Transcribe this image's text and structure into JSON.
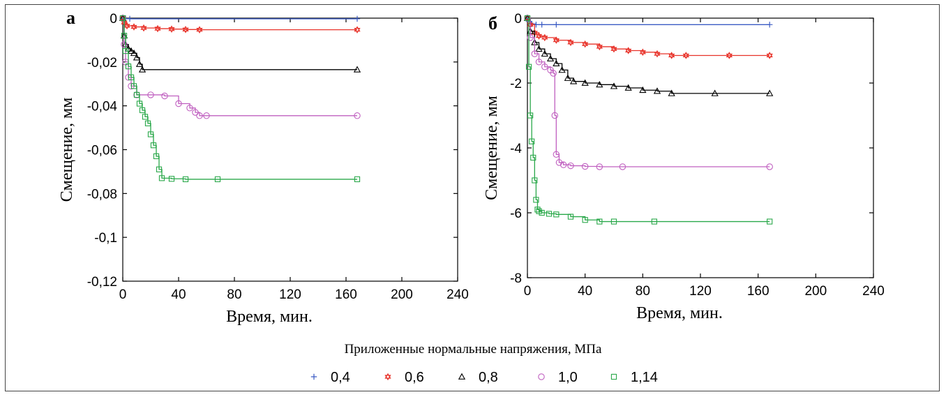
{
  "legend": {
    "title": "Приложенные нормальные напряжения, МПа",
    "items": [
      {
        "label": "0,4",
        "color": "#3b5bc4",
        "marker": "plus"
      },
      {
        "label": "0,6",
        "color": "#e8332a",
        "marker": "star"
      },
      {
        "label": "0,8",
        "color": "#000000",
        "marker": "triangle"
      },
      {
        "label": "1,0",
        "color": "#c060c0",
        "marker": "circle"
      },
      {
        "label": "1,14",
        "color": "#2aa84a",
        "marker": "square"
      }
    ]
  },
  "chart_data": [
    {
      "type": "line",
      "panel_label": "а",
      "xlabel": "Время, мин.",
      "ylabel": "Смещение, мм",
      "xlim": [
        0,
        240
      ],
      "ylim": [
        -0.12,
        0
      ],
      "xticks": [
        0,
        40,
        80,
        120,
        160,
        200,
        240
      ],
      "xtick_labels": [
        "0",
        "40",
        "80",
        "120",
        "160",
        "200",
        "240"
      ],
      "yticks": [
        0,
        -0.02,
        -0.04,
        -0.06,
        -0.08,
        -0.1,
        -0.12
      ],
      "ytick_labels": [
        "0",
        "-0,02",
        "-0,04",
        "-0,06",
        "-0,08",
        "-0,1",
        "-0,12"
      ],
      "grid": false,
      "series": [
        {
          "name": "0,4",
          "x": [
            0,
            2,
            5,
            168
          ],
          "y": [
            0,
            -0.0002,
            -0.0003,
            -0.0003
          ]
        },
        {
          "name": "0,6",
          "x": [
            0,
            1,
            3,
            8,
            15,
            25,
            35,
            45,
            55,
            168
          ],
          "y": [
            0,
            -0.002,
            -0.0035,
            -0.004,
            -0.0045,
            -0.0048,
            -0.005,
            -0.0052,
            -0.0053,
            -0.0053
          ]
        },
        {
          "name": "0,8",
          "x": [
            0,
            1,
            2,
            4,
            6,
            8,
            10,
            12,
            14,
            168
          ],
          "y": [
            0,
            -0.008,
            -0.012,
            -0.014,
            -0.015,
            -0.016,
            -0.018,
            -0.021,
            -0.0235,
            -0.0235
          ]
        },
        {
          "name": "1,0",
          "x": [
            0,
            1,
            2,
            4,
            6,
            10,
            20,
            30,
            40,
            48,
            52,
            55,
            60,
            168
          ],
          "y": [
            0,
            -0.012,
            -0.02,
            -0.027,
            -0.031,
            -0.035,
            -0.035,
            -0.0355,
            -0.039,
            -0.041,
            -0.043,
            -0.0445,
            -0.0445,
            -0.0445
          ]
        },
        {
          "name": "1,14",
          "x": [
            0,
            1,
            2,
            4,
            6,
            8,
            10,
            12,
            14,
            16,
            18,
            20,
            22,
            24,
            26,
            28,
            35,
            45,
            68,
            168
          ],
          "y": [
            0,
            -0.008,
            -0.015,
            -0.022,
            -0.027,
            -0.031,
            -0.035,
            -0.039,
            -0.042,
            -0.045,
            -0.048,
            -0.053,
            -0.058,
            -0.063,
            -0.069,
            -0.073,
            -0.0733,
            -0.0735,
            -0.0735,
            -0.0735
          ]
        }
      ]
    },
    {
      "type": "line",
      "panel_label": "б",
      "xlabel": "Время, мин.",
      "ylabel": "Смещение, мм",
      "xlim": [
        0,
        240
      ],
      "ylim": [
        -8,
        0
      ],
      "xticks": [
        0,
        40,
        80,
        120,
        160,
        200,
        240
      ],
      "xtick_labels": [
        "0",
        "40",
        "80",
        "120",
        "160",
        "200",
        "240"
      ],
      "yticks": [
        0,
        -2,
        -4,
        -6,
        -8
      ],
      "ytick_labels": [
        "0",
        "-2",
        "-4",
        "-6",
        "-8"
      ],
      "grid": false,
      "series": [
        {
          "name": "0,4",
          "x": [
            0,
            1,
            3,
            6,
            10,
            20,
            168
          ],
          "y": [
            0,
            -0.1,
            -0.18,
            -0.2,
            -0.2,
            -0.2,
            -0.2
          ]
        },
        {
          "name": "0,6",
          "x": [
            0,
            2,
            5,
            8,
            12,
            20,
            30,
            40,
            50,
            60,
            70,
            80,
            90,
            100,
            110,
            140,
            168
          ],
          "y": [
            0,
            -0.2,
            -0.45,
            -0.55,
            -0.6,
            -0.68,
            -0.75,
            -0.8,
            -0.88,
            -0.95,
            -1.0,
            -1.05,
            -1.1,
            -1.15,
            -1.15,
            -1.15,
            -1.15
          ]
        },
        {
          "name": "0,8",
          "x": [
            0,
            2,
            5,
            8,
            12,
            16,
            20,
            24,
            28,
            32,
            40,
            50,
            60,
            70,
            80,
            90,
            100,
            130,
            168
          ],
          "y": [
            0,
            -0.4,
            -0.75,
            -0.95,
            -1.1,
            -1.25,
            -1.4,
            -1.6,
            -1.85,
            -1.95,
            -2.0,
            -2.05,
            -2.1,
            -2.15,
            -2.22,
            -2.25,
            -2.32,
            -2.32,
            -2.32
          ]
        },
        {
          "name": "1,0",
          "x": [
            0,
            2,
            5,
            8,
            12,
            16,
            18,
            19,
            20,
            22,
            25,
            30,
            40,
            50,
            66,
            168
          ],
          "y": [
            0,
            -0.6,
            -1.1,
            -1.35,
            -1.5,
            -1.6,
            -1.7,
            -3.0,
            -4.2,
            -4.45,
            -4.52,
            -4.55,
            -4.57,
            -4.58,
            -4.58,
            -4.58
          ]
        },
        {
          "name": "1,14",
          "x": [
            0,
            1,
            2,
            3,
            4,
            5,
            6,
            7,
            8,
            10,
            15,
            20,
            30,
            40,
            50,
            60,
            88,
            168
          ],
          "y": [
            0,
            -1.5,
            -3.0,
            -3.8,
            -4.3,
            -5.0,
            -5.6,
            -5.9,
            -5.95,
            -6.0,
            -6.03,
            -6.05,
            -6.12,
            -6.22,
            -6.27,
            -6.27,
            -6.27,
            -6.27
          ]
        }
      ]
    }
  ]
}
